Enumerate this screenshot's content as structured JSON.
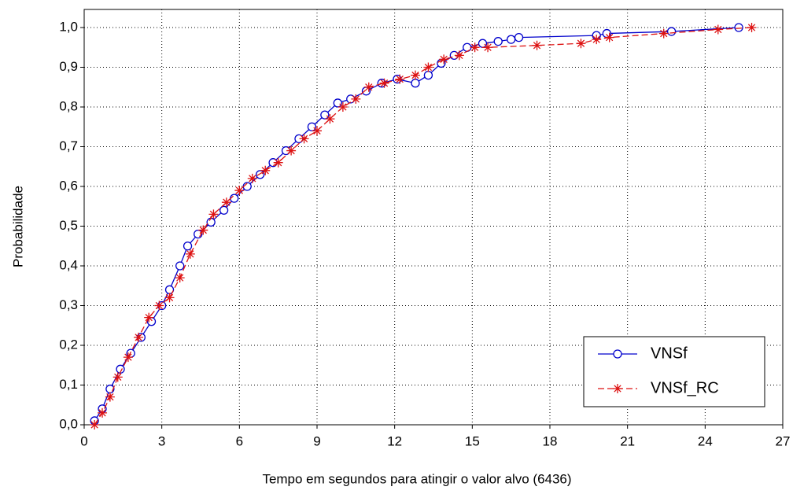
{
  "chart_data": {
    "type": "line",
    "xlabel": "Tempo em segundos para atingir o valor alvo (6436)",
    "ylabel": "Probabilidade",
    "xlim": [
      0,
      27
    ],
    "xticks": [
      0,
      3,
      6,
      9,
      12,
      15,
      18,
      21,
      24,
      27
    ],
    "ylim": [
      0,
      1
    ],
    "yticks": [
      {
        "value": 0,
        "label": "0,0"
      },
      {
        "value": 0.1,
        "label": "0,1"
      },
      {
        "value": 0.2,
        "label": "0,2"
      },
      {
        "value": 0.3,
        "label": "0,3"
      },
      {
        "value": 0.4,
        "label": "0,4"
      },
      {
        "value": 0.5,
        "label": "0,5"
      },
      {
        "value": 0.6,
        "label": "0,6"
      },
      {
        "value": 0.7,
        "label": "0,7"
      },
      {
        "value": 0.8,
        "label": "0,8"
      },
      {
        "value": 0.9,
        "label": "0,9"
      },
      {
        "value": 1,
        "label": "1,0"
      }
    ],
    "grid": true,
    "legend": "lower right",
    "series": [
      {
        "name": "VNSf",
        "color": "#0000cc",
        "marker": "circle",
        "linestyle": "solid",
        "x": [
          0.4,
          0.7,
          1.0,
          1.4,
          1.8,
          2.2,
          2.6,
          3.0,
          3.3,
          3.7,
          4.0,
          4.4,
          4.9,
          5.4,
          5.8,
          6.3,
          6.8,
          7.3,
          7.8,
          8.3,
          8.8,
          9.3,
          9.8,
          10.3,
          10.9,
          11.5,
          12.1,
          12.8,
          13.3,
          13.8,
          14.3,
          14.8,
          15.4,
          16.0,
          16.5,
          16.8,
          19.8,
          20.2,
          22.7,
          25.3
        ],
        "values": [
          0.01,
          0.04,
          0.09,
          0.14,
          0.18,
          0.22,
          0.26,
          0.3,
          0.34,
          0.4,
          0.45,
          0.48,
          0.51,
          0.54,
          0.57,
          0.6,
          0.63,
          0.66,
          0.69,
          0.72,
          0.75,
          0.78,
          0.81,
          0.82,
          0.84,
          0.86,
          0.87,
          0.86,
          0.88,
          0.91,
          0.93,
          0.95,
          0.96,
          0.965,
          0.97,
          0.975,
          0.98,
          0.985,
          0.99,
          1.0
        ]
      },
      {
        "name": "VNSf_RC",
        "color": "#dd1111",
        "marker": "asterisk",
        "linestyle": "dashed",
        "x": [
          0.4,
          0.7,
          1.0,
          1.3,
          1.7,
          2.1,
          2.5,
          2.9,
          3.3,
          3.7,
          4.1,
          4.6,
          5.0,
          5.5,
          6.0,
          6.5,
          7.0,
          7.5,
          8.0,
          8.5,
          9.0,
          9.5,
          10.0,
          10.5,
          11.0,
          11.6,
          12.2,
          12.8,
          13.3,
          13.9,
          14.5,
          15.1,
          15.6,
          17.5,
          19.2,
          19.8,
          20.3,
          22.4,
          24.5,
          25.8
        ],
        "values": [
          0.0,
          0.03,
          0.07,
          0.12,
          0.17,
          0.22,
          0.27,
          0.3,
          0.32,
          0.37,
          0.43,
          0.49,
          0.53,
          0.56,
          0.59,
          0.62,
          0.64,
          0.66,
          0.69,
          0.72,
          0.74,
          0.77,
          0.8,
          0.82,
          0.85,
          0.86,
          0.87,
          0.88,
          0.9,
          0.92,
          0.93,
          0.95,
          0.95,
          0.955,
          0.96,
          0.97,
          0.975,
          0.985,
          0.995,
          1.0
        ]
      }
    ]
  }
}
